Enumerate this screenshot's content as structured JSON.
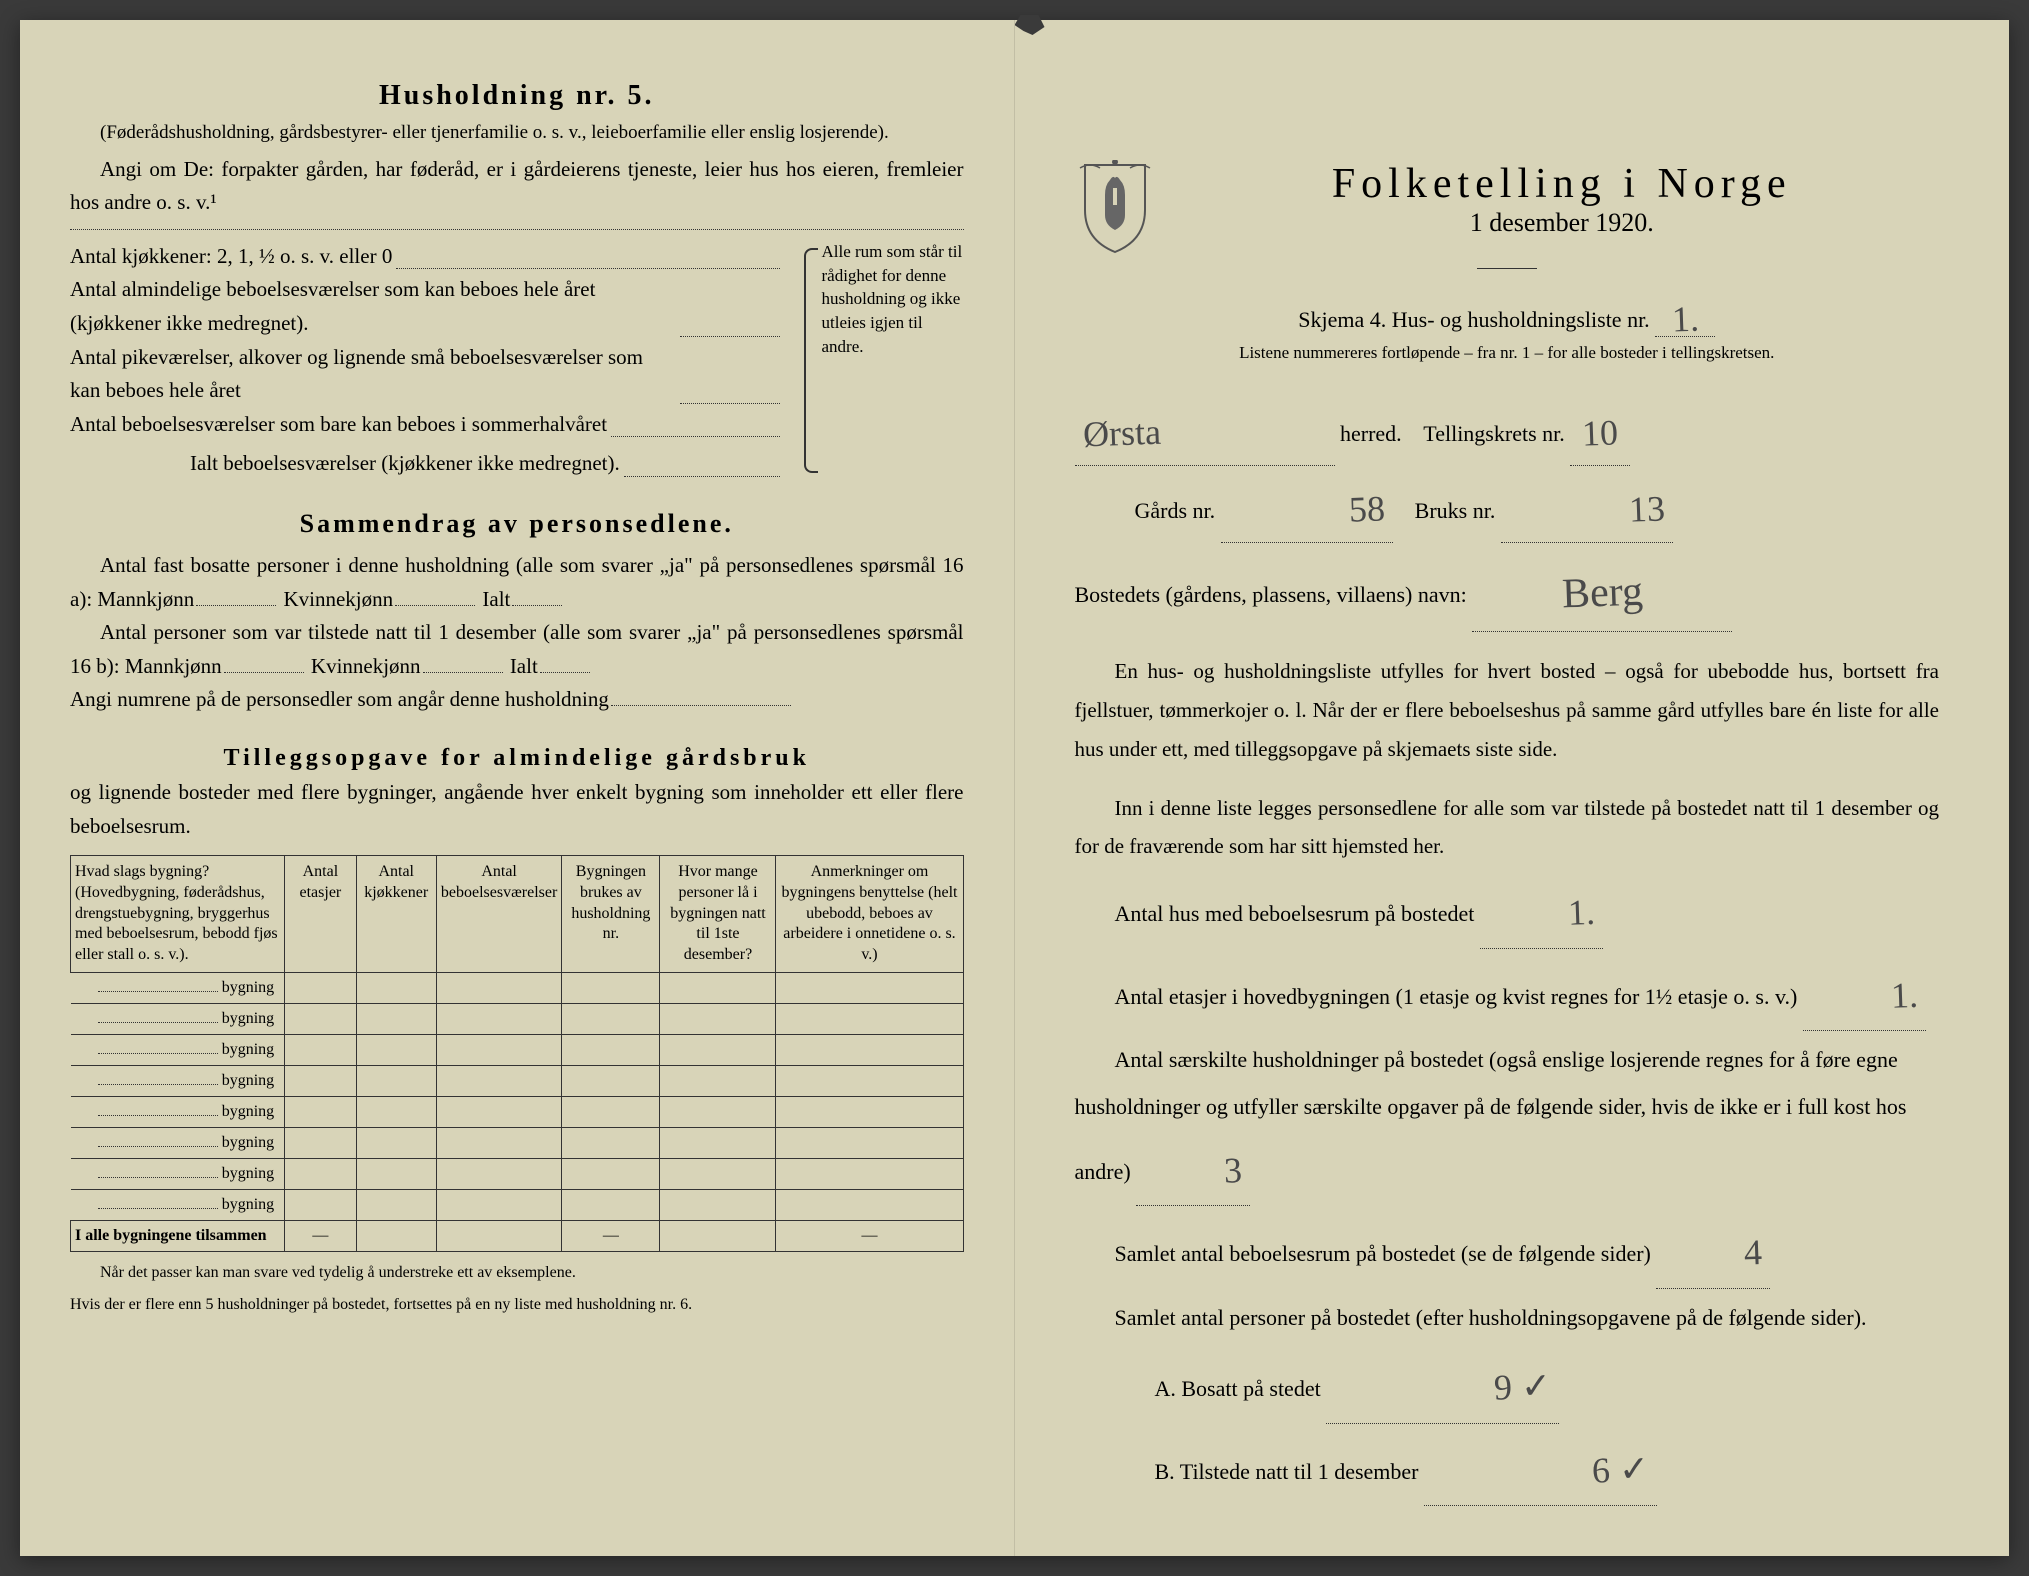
{
  "left": {
    "h5_title": "Husholdning nr. 5.",
    "h5_note": "(Føderådshusholdning, gårdsbestyrer- eller tjenerfamilie o. s. v., leieboerfamilie eller enslig losjerende).",
    "angi_line": "Angi om De: forpakter gården, har føderåd, er i gårdeierens tjeneste, leier hus hos eieren, fremleier hos andre o. s. v.¹",
    "kjokken_label": "Antal kjøkkener: 2, 1, ½ o. s. v. eller 0",
    "alm_beboelse": "Antal almindelige beboelsesværelser som kan beboes hele året (kjøkkener ikke medregnet).",
    "pike_label": "Antal pikeværelser, alkover og lignende små beboelsesværelser som kan beboes hele året",
    "sommer_label": "Antal beboelsesværelser som bare kan beboes i sommerhalvåret",
    "ialt_label": "Ialt beboelsesværelser (kjøkkener ikke medregnet).",
    "bracket_text": "Alle rum som står til rådighet for denne husholdning og ikke utleies igjen til andre.",
    "sammendrag_title": "Sammendrag av personsedlene.",
    "sammendrag_p1": "Antal fast bosatte personer i denne husholdning (alle som svarer „ja\" på personsedlenes spørsmål 16 a): Mannkjønn",
    "kvinnekjonn": "Kvinnekjønn",
    "ialt": "Ialt",
    "sammendrag_p2": "Antal personer som var tilstede natt til 1 desember (alle som svarer „ja\" på personsedlenes spørsmål 16 b): Mannkjønn",
    "angi_numrene": "Angi numrene på de personsedler som angår denne husholdning",
    "tillegg_title": "Tilleggsopgave for almindelige gårdsbruk",
    "tillegg_sub": "og lignende bosteder med flere bygninger, angående hver enkelt bygning som inneholder ett eller flere beboelsesrum.",
    "table": {
      "col1": "Hvad slags bygning?\n(Hovedbygning, føderådshus, drengstuebygning, bryggerhus med beboelsesrum, bebodd fjøs eller stall o. s. v.).",
      "col2": "Antal etasjer",
      "col3": "Antal kjøkkener",
      "col4": "Antal beboelsesværelser",
      "col5": "Bygningen brukes av husholdning nr.",
      "col6": "Hvor mange personer lå i bygningen natt til 1ste desember?",
      "col7": "Anmerkninger om bygningens benyttelse (helt ubebodd, beboes av arbeidere i onnetidene o. s. v.)",
      "row_label": "bygning",
      "sum_label": "I alle bygningene tilsammen",
      "dash": "—"
    },
    "footer1": "Når det passer kan man svare ved tydelig å understreke ett av eksemplene.",
    "footer2": "Hvis der er flere enn 5 husholdninger på bostedet, fortsettes på en ny liste med husholdning nr. 6."
  },
  "right": {
    "main_title": "Folketelling i Norge",
    "date": "1 desember 1920.",
    "skjema": "Skjema 4.  Hus- og husholdningsliste nr.",
    "liste_nr": "1.",
    "listene": "Listene nummereres fortløpende – fra nr. 1 – for alle bosteder i tellingskretsen.",
    "herred_value": "Ørsta",
    "herred_label": "herred.",
    "tellingskrets_label": "Tellingskrets nr.",
    "tellingskrets_value": "10",
    "gards_label": "Gårds nr.",
    "gards_value": "58",
    "bruks_label": "Bruks nr.",
    "bruks_value": "13",
    "bosted_label": "Bostedets (gårdens, plassens, villaens) navn:",
    "bosted_value": "Berg",
    "para1": "En hus- og husholdningsliste utfylles for hvert bosted – også for ubebodde hus, bortsett fra fjellstuer, tømmerkojer o. l.  Når der er flere beboelseshus på samme gård utfylles bare én liste for alle hus under ett, med tilleggsopgave på skjemaets siste side.",
    "para2": "Inn i denne liste legges personsedlene for alle som var tilstede på bostedet natt til 1 desember og for de fraværende som har sitt hjemsted her.",
    "antal_hus_label": "Antal hus med beboelsesrum på bostedet",
    "antal_hus_value": "1.",
    "etasjer_label": "Antal etasjer i hovedbygningen (1 etasje og kvist regnes for 1½ etasje o. s. v.)",
    "etasjer_value": "1.",
    "saerskilte_label": "Antal særskilte husholdninger på bostedet (også enslige losjerende regnes for å føre egne husholdninger og utfyller særskilte opgaver på de følgende sider, hvis de ikke er i full kost hos andre)",
    "saerskilte_value": "3",
    "samlet_beboelse_label": "Samlet antal beboelsesrum på bostedet (se de følgende sider)",
    "samlet_beboelse_value": "4",
    "samlet_personer_label": "Samlet antal personer på bostedet (efter husholdningsopgavene på de følgende sider).",
    "a_label": "A.  Bosatt på stedet",
    "a_value": "9 ✓",
    "b_label": "B.  Tilstede natt til 1 desember",
    "b_value": "6 ✓"
  }
}
